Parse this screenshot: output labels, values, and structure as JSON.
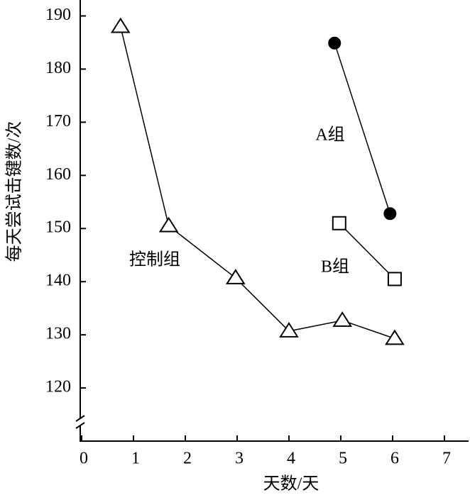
{
  "chart_data": {
    "type": "line",
    "x_label": "天数/天",
    "y_label": "每天尝试击键数/次",
    "xlim": [
      0,
      7.47
    ],
    "xticks": [
      0,
      1,
      2,
      3,
      4,
      5,
      6,
      7
    ],
    "ylim": [
      110,
      193
    ],
    "yticks": [
      120,
      130,
      140,
      150,
      160,
      170,
      180,
      190
    ],
    "series": [
      {
        "name": "控制组",
        "color": "#000000",
        "marker": "triangle",
        "x": [
          0.75,
          1.68,
          2.97,
          4.0,
          5.03,
          6.04
        ],
        "values": [
          188,
          150.5,
          140.7,
          130.7,
          132.7,
          129.3
        ]
      },
      {
        "name": "A组",
        "color": "#000000",
        "marker": "circle",
        "x": [
          4.88,
          5.95
        ],
        "values": [
          184.9,
          152.8
        ]
      },
      {
        "name": "B组",
        "color": "#000000",
        "marker": "square",
        "x": [
          4.97,
          6.04
        ],
        "values": [
          151,
          140.5
        ]
      }
    ]
  }
}
